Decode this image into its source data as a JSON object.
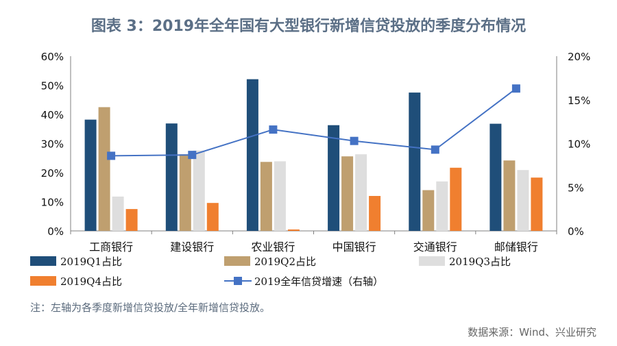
{
  "title": "图表 3：2019年全年国有大型银行新增信贷投放的季度分布情况",
  "note": "注：左轴为各季度新增信贷投放/全年新增信贷投放。",
  "source": "数据来源：Wind、兴业研究",
  "colors": {
    "q1": "#1f4e79",
    "q2": "#bf9f6f",
    "q3": "#dedede",
    "q4": "#f07f2f",
    "line": "#4472c4"
  },
  "chart_data": {
    "type": "bar",
    "categories": [
      "工商银行",
      "建设银行",
      "农业银行",
      "中国银行",
      "交通银行",
      "邮储银行"
    ],
    "series": [
      {
        "name": "2019Q1占比",
        "axis": "left",
        "values": [
          38.2,
          36.9,
          52.1,
          36.3,
          47.5,
          36.8
        ]
      },
      {
        "name": "2019Q2占比",
        "axis": "left",
        "values": [
          42.5,
          26.3,
          23.7,
          25.6,
          14.0,
          24.2
        ]
      },
      {
        "name": "2019Q3占比",
        "axis": "left",
        "values": [
          11.8,
          27.6,
          23.9,
          26.3,
          17.0,
          20.9
        ]
      },
      {
        "name": "2019Q4占比",
        "axis": "left",
        "values": [
          7.5,
          9.6,
          0.5,
          12.0,
          21.7,
          18.3
        ]
      },
      {
        "name": "2019全年信贷增速（右轴）",
        "type": "line",
        "axis": "right",
        "values": [
          8.6,
          8.7,
          11.6,
          10.3,
          9.3,
          16.3
        ]
      }
    ],
    "y_left": {
      "min": 0,
      "max": 60,
      "ticks": [
        "0%",
        "10%",
        "20%",
        "30%",
        "40%",
        "50%",
        "60%"
      ]
    },
    "y_right": {
      "min": 0,
      "max": 20,
      "ticks": [
        "0%",
        "5%",
        "10%",
        "15%",
        "20%"
      ]
    },
    "legend": [
      "2019Q1占比",
      "2019Q2占比",
      "2019Q3占比",
      "2019Q4占比",
      "2019全年信贷增速（右轴）"
    ]
  }
}
